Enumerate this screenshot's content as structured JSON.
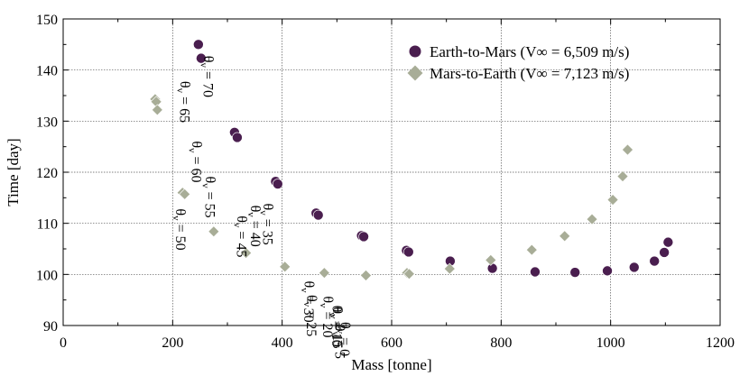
{
  "chart_data": {
    "type": "scatter",
    "xlabel": "Mass [tonne]",
    "ylabel": "Time [day]",
    "xlim": [
      0,
      1200
    ],
    "ylim": [
      90,
      150
    ],
    "xticks": [
      0,
      200,
      400,
      600,
      800,
      1000,
      1200
    ],
    "yticks": [
      90,
      100,
      110,
      120,
      130,
      140,
      150
    ],
    "grid": true,
    "legend_position": "top-right",
    "series": [
      {
        "name": "Earth-to-Mars (V∞ = 6,509 m/s)",
        "color": "#4a1e4f",
        "marker": "circle",
        "points": [
          {
            "x": 247,
            "y": 145.0
          },
          {
            "x": 252,
            "y": 142.3
          },
          {
            "x": 313,
            "y": 127.8
          },
          {
            "x": 318,
            "y": 126.8
          },
          {
            "x": 388,
            "y": 118.2
          },
          {
            "x": 392,
            "y": 117.7
          },
          {
            "x": 462,
            "y": 112.0
          },
          {
            "x": 466,
            "y": 111.6
          },
          {
            "x": 545,
            "y": 107.6
          },
          {
            "x": 549,
            "y": 107.4
          },
          {
            "x": 627,
            "y": 104.7
          },
          {
            "x": 631,
            "y": 104.4
          },
          {
            "x": 707,
            "y": 102.6
          },
          {
            "x": 784,
            "y": 101.2
          },
          {
            "x": 862,
            "y": 100.5
          },
          {
            "x": 935,
            "y": 100.4
          },
          {
            "x": 994,
            "y": 100.7
          },
          {
            "x": 1043,
            "y": 101.4
          },
          {
            "x": 1080,
            "y": 102.6
          },
          {
            "x": 1098,
            "y": 104.3
          },
          {
            "x": 1105,
            "y": 106.3
          }
        ]
      },
      {
        "name": "Mars-to-Earth (V∞ = 7,123 m/s)",
        "color": "#a8ad97",
        "marker": "diamond",
        "points": [
          {
            "x": 168,
            "y": 134.3
          },
          {
            "x": 170,
            "y": 133.8
          },
          {
            "x": 172,
            "y": 132.2
          },
          {
            "x": 218,
            "y": 116.0
          },
          {
            "x": 222,
            "y": 115.7
          },
          {
            "x": 275,
            "y": 108.4
          },
          {
            "x": 334,
            "y": 104.2
          },
          {
            "x": 405,
            "y": 101.5
          },
          {
            "x": 477,
            "y": 100.3
          },
          {
            "x": 553,
            "y": 99.8
          },
          {
            "x": 628,
            "y": 100.3
          },
          {
            "x": 632,
            "y": 100.1
          },
          {
            "x": 706,
            "y": 101.1
          },
          {
            "x": 781,
            "y": 102.8
          },
          {
            "x": 856,
            "y": 104.8
          },
          {
            "x": 916,
            "y": 107.5
          },
          {
            "x": 966,
            "y": 110.8
          },
          {
            "x": 1004,
            "y": 114.6
          },
          {
            "x": 1022,
            "y": 119.2
          },
          {
            "x": 1031,
            "y": 124.4
          }
        ]
      }
    ],
    "annotations": [
      {
        "text": "θv = 70",
        "x": 250,
        "y": 142.8,
        "dx": 8,
        "dy": 0
      },
      {
        "text": "θv = 65",
        "x": 316,
        "y": 127.6,
        "dx": -58,
        "dy": -58
      },
      {
        "text": "θv = 60",
        "x": 390,
        "y": 118.0,
        "dx": -90,
        "dy": -46
      },
      {
        "text": "θv = 55",
        "x": 464,
        "y": 111.8,
        "dx": -120,
        "dy": -42
      },
      {
        "text": "θv = 50",
        "x": 547,
        "y": 107.4,
        "dx": -203,
        "dy": -31
      },
      {
        "text": "θv = 45",
        "x": 629,
        "y": 104.6,
        "dx": -185,
        "dy": -39
      },
      {
        "text": "θv = 40",
        "x": 707,
        "y": 102.6,
        "dx": -217,
        "dy": -62
      },
      {
        "text": "θv = 35",
        "x": 784,
        "y": 101.2,
        "dx": -250,
        "dy": -72
      },
      {
        "text": "θv = 30",
        "x": 862,
        "y": 100.5,
        "dx": -252,
        "dy": 10
      },
      {
        "text": "θv = 25",
        "x": 935,
        "y": 100.4,
        "dx": -293,
        "dy": 25
      },
      {
        "text": "θv = 20",
        "x": 994,
        "y": 100.7,
        "dx": -311,
        "dy": 28
      },
      {
        "text": "θv = 15",
        "x": 1043,
        "y": 101.4,
        "dx": -330,
        "dy": 44
      },
      {
        "text": "θv = 10",
        "x": 1080,
        "y": 102.6,
        "dx": -353,
        "dy": 49
      },
      {
        "text": "θv = 5",
        "x": 1105,
        "y": 100.8,
        "dx": -365,
        "dy": 60
      },
      {
        "text": "θv = 0",
        "x": 1098,
        "y": 104.3,
        "dx": -355,
        "dy": 77
      }
    ]
  }
}
